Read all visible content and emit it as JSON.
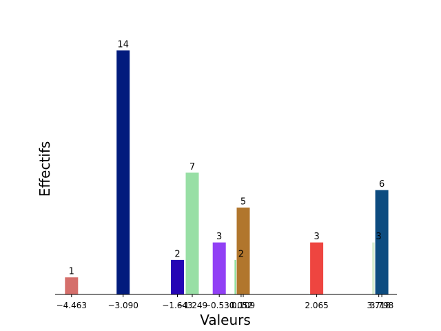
{
  "chart_data": {
    "type": "bar",
    "xlabel": "Valeurs",
    "ylabel": "Effectifs",
    "ylim": [
      0,
      14.7
    ],
    "grid": false,
    "x_ticks": [
      "−4.463",
      "−3.090",
      "−1.643",
      "−1.249",
      "−0.530",
      "0.052",
      "0.109",
      "2.065",
      "3.718",
      "3.798"
    ],
    "bars": [
      {
        "x": -4.463,
        "value": 1,
        "label": "1",
        "color": "#d56f6b"
      },
      {
        "x": -3.09,
        "value": 14,
        "label": "14",
        "color": "#021b7d"
      },
      {
        "x": -1.643,
        "value": 2,
        "label": "2",
        "color": "#2505b5"
      },
      {
        "x": -1.249,
        "value": 7,
        "label": "7",
        "color": "#98dfa5"
      },
      {
        "x": -0.53,
        "value": 3,
        "label": "3",
        "color": "#9140f5"
      },
      {
        "x": 0.052,
        "value": 2,
        "label": "2",
        "color": "#86dd96"
      },
      {
        "x": 0.109,
        "value": 5,
        "label": "5",
        "color": "#b1762d"
      },
      {
        "x": 2.065,
        "value": 3,
        "label": "3",
        "color": "#ee4540"
      },
      {
        "x": 3.718,
        "value": 3,
        "label": "3",
        "color": "#d8edcf"
      },
      {
        "x": 3.798,
        "value": 6,
        "label": "6",
        "color": "#0d4c80"
      }
    ]
  }
}
